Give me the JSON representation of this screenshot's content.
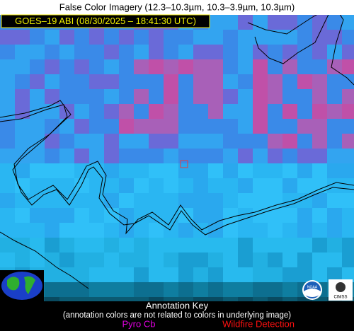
{
  "header": {
    "title": "False Color Imagery (12.3–10.3µm, 10.3–3.9µm, 10.3µm)",
    "timestamp": "GOES–19 ABI (08/30/2025 – 18:41:30 UTC)"
  },
  "annotation_key": {
    "title": "Annotation Key",
    "note": "(annotation colors are not related to colors in underlying image)",
    "items": [
      "Pyro Cb",
      "Wildfire Detection"
    ]
  },
  "logos": {
    "noaa": "NOAA",
    "cimss": "CIMSS"
  }
}
